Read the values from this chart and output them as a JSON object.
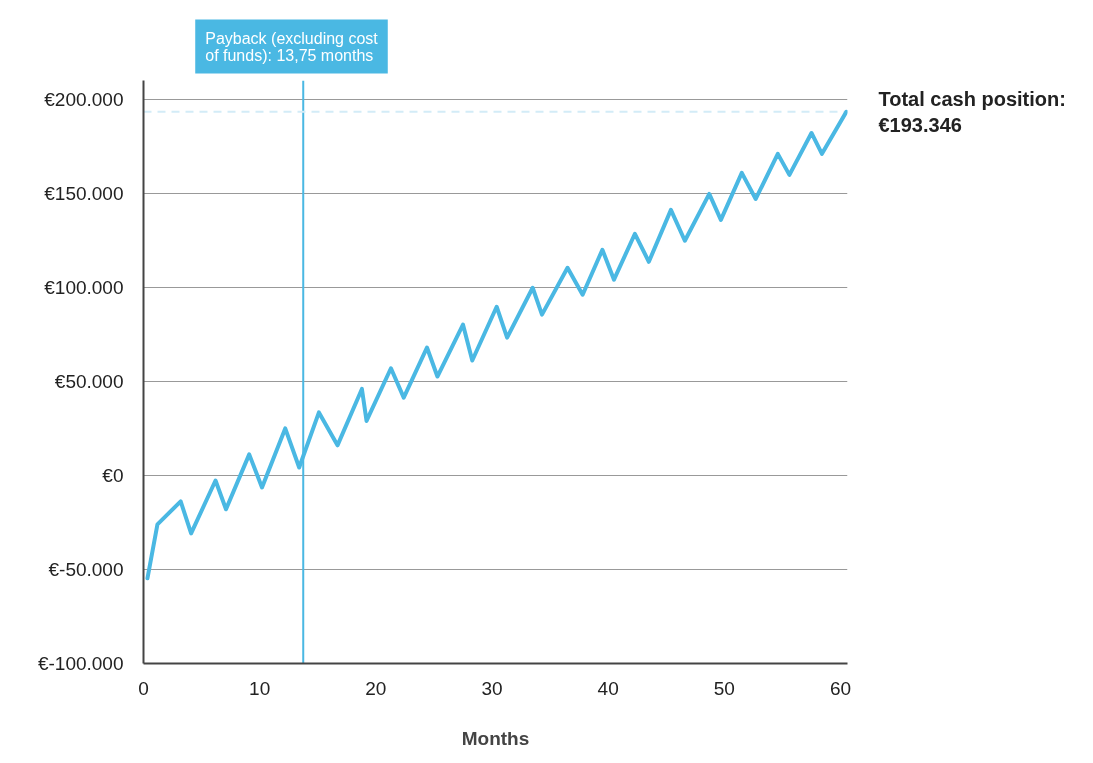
{
  "chart_data": {
    "type": "line",
    "xlabel": "Months",
    "x": [
      0.34,
      1.2,
      3.2,
      4.1,
      6.2,
      7.1,
      9.1,
      10.2,
      12.2,
      13.4,
      15.1,
      16.7,
      18.8,
      19.2,
      21.3,
      22.4,
      24.4,
      25.3,
      27.5,
      28.3,
      30.4,
      31.3,
      33.5,
      34.3,
      36.5,
      37.8,
      39.5,
      40.5,
      42.3,
      43.5,
      45.4,
      46.6,
      48.7,
      49.7,
      51.5,
      52.7,
      54.6,
      55.6,
      57.5,
      58.4,
      60.5
    ],
    "series": [
      {
        "color": "#4ab8e3",
        "values": [
          -54700,
          -26000,
          -13800,
          -30800,
          -2700,
          -18000,
          11200,
          -6400,
          25000,
          4200,
          33500,
          16000,
          46000,
          29000,
          57000,
          41400,
          68000,
          52600,
          80200,
          61100,
          89700,
          73300,
          99800,
          85500,
          110400,
          96100,
          120000,
          104100,
          128500,
          113600,
          141200,
          124800,
          149700,
          135900,
          160900,
          147000,
          171000,
          159800,
          182100,
          171000,
          193346
        ]
      }
    ],
    "xlim": [
      0,
      60.6
    ],
    "xticks": [
      0,
      10,
      20,
      30,
      40,
      50,
      60
    ],
    "ylim": [
      -100000,
      210000
    ],
    "yticks": [
      {
        "value": -100000,
        "label": "€-100.000"
      },
      {
        "value": -50000,
        "label": "€-50.000"
      },
      {
        "value": 0,
        "label": "€0"
      },
      {
        "value": 50000,
        "label": "€50.000"
      },
      {
        "value": 100000,
        "label": "€100.000"
      },
      {
        "value": 150000,
        "label": "€150.000"
      },
      {
        "value": 200000,
        "label": "€200.000"
      }
    ],
    "grid": "y",
    "ref_lines": [
      {
        "axis": "x",
        "value": 13.75,
        "label": "Payback (excluding cost\nof funds): 13,75 months",
        "color": "#4ab8e3"
      },
      {
        "axis": "y",
        "value": 193346,
        "label": "Total cash position:\n€193.346",
        "color": "#d3ecf7",
        "line_style": "dashed"
      }
    ]
  }
}
